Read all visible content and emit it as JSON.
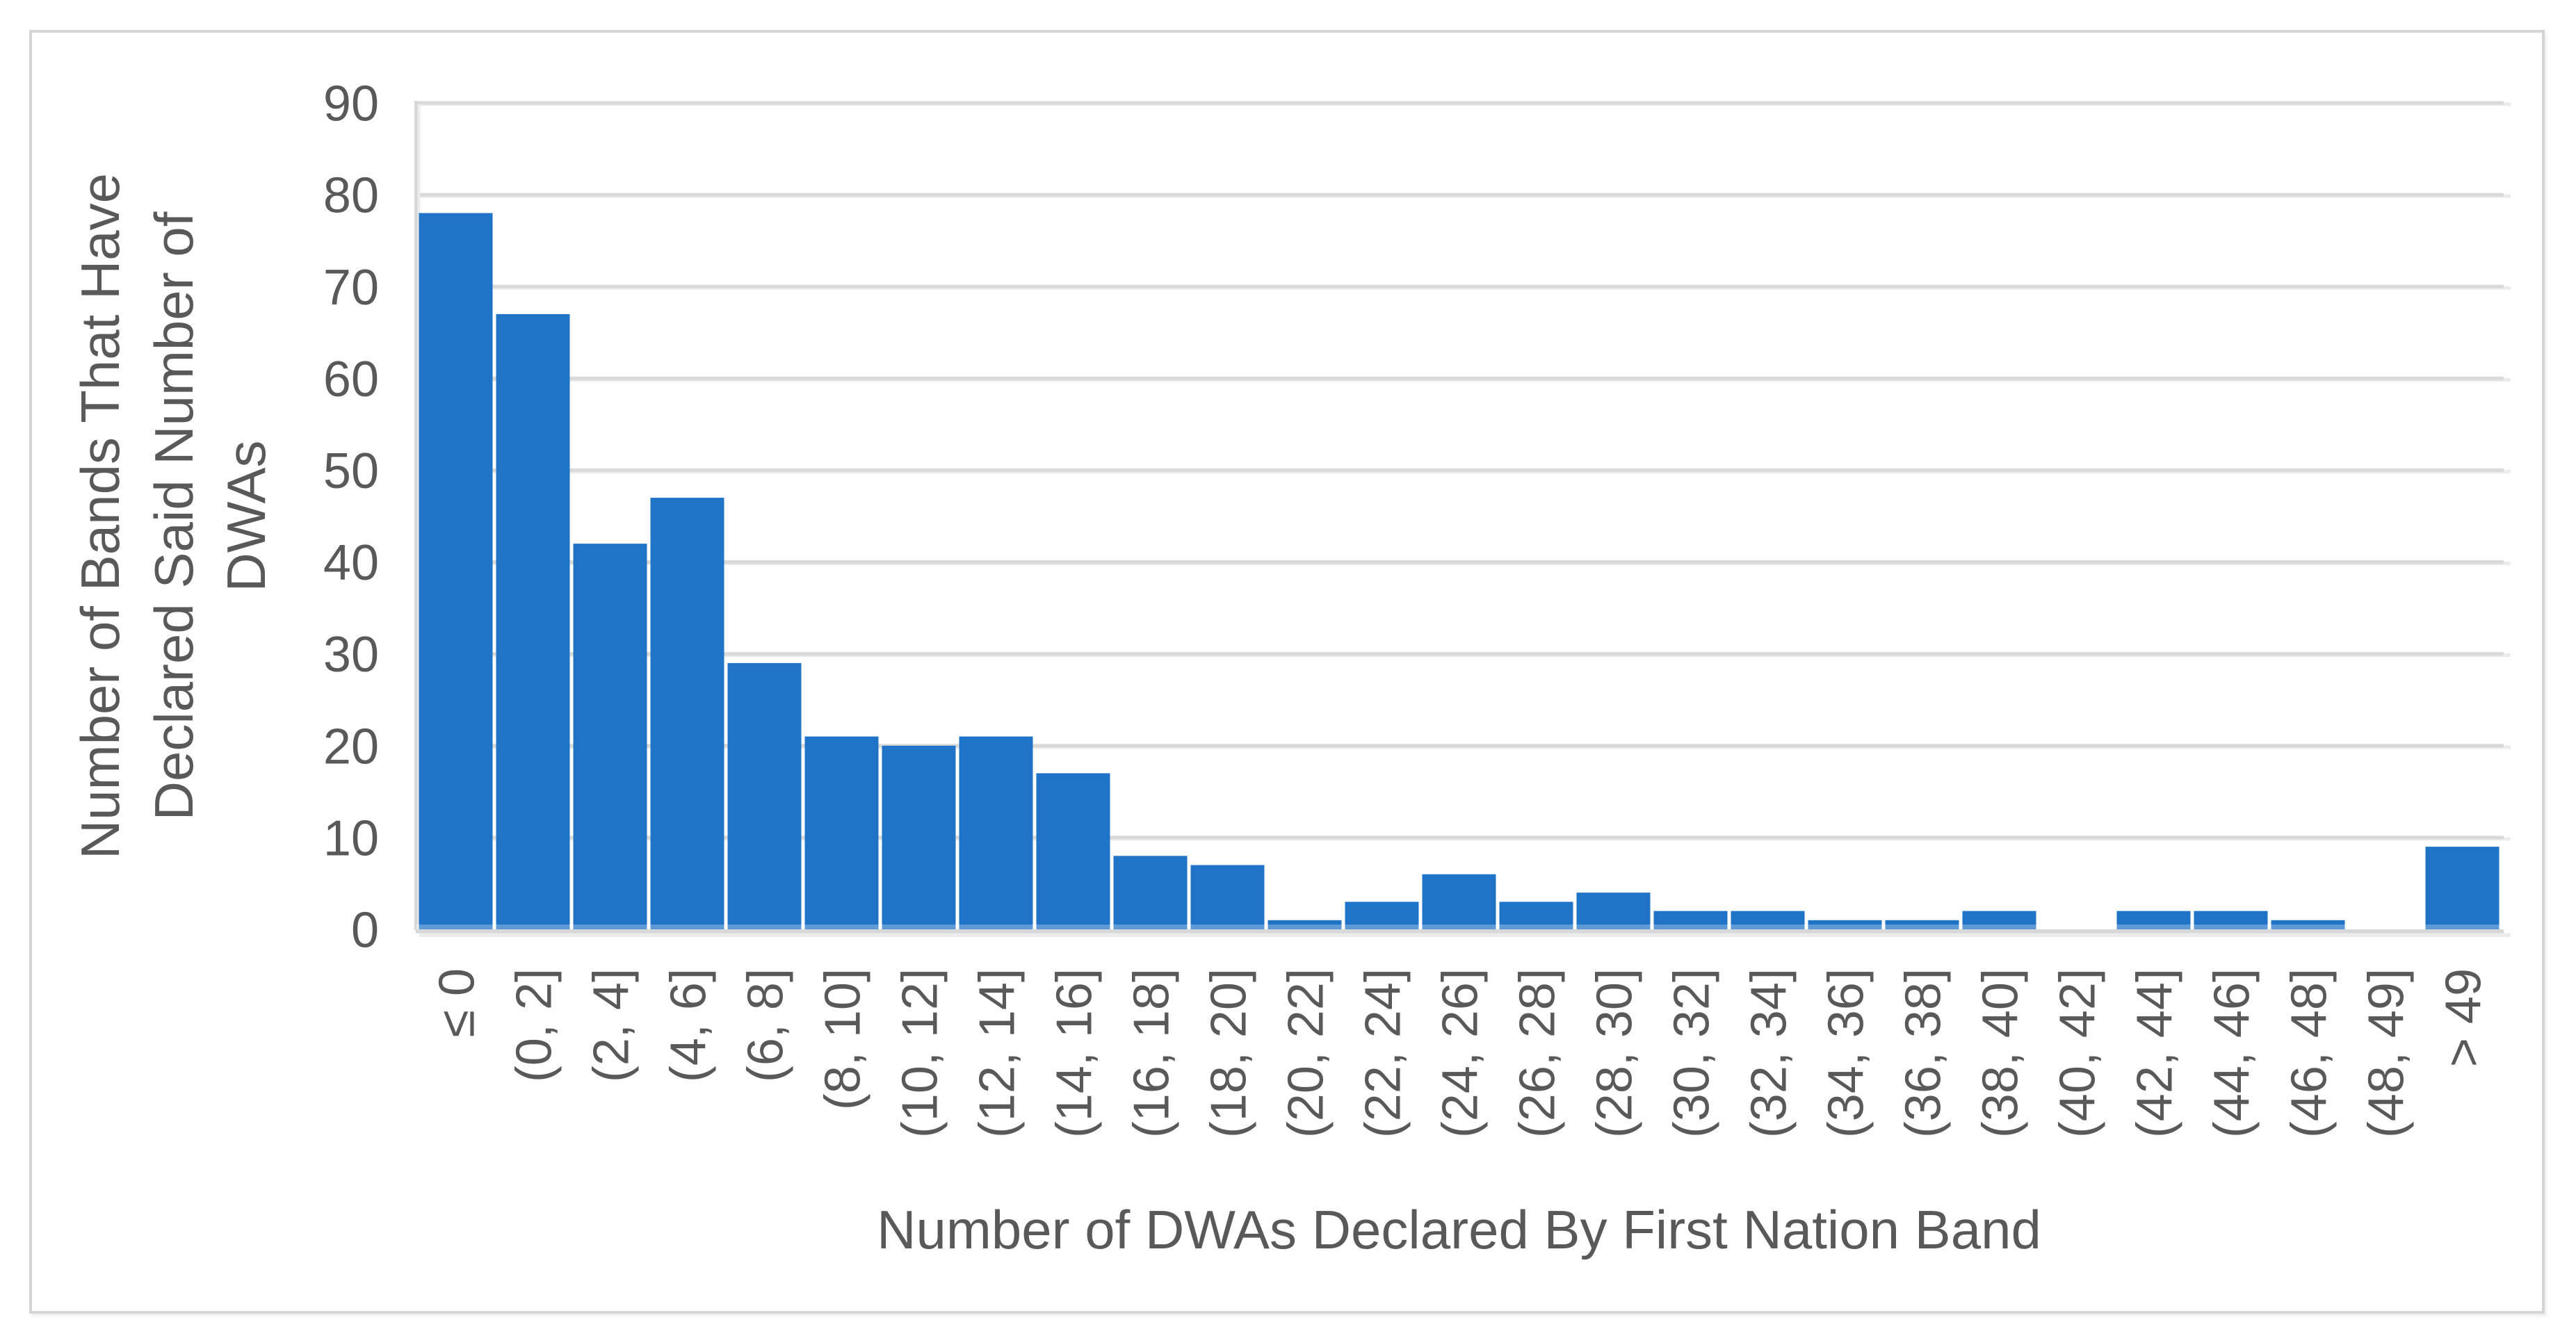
{
  "chart_data": {
    "type": "bar",
    "title": "",
    "xlabel": "Number of DWAs Declared By First Nation Band",
    "ylabel": "Number of Bands That Have Declared Said Number of DWAs",
    "ylabel_lines": [
      "Number of Bands That Have",
      "Declared Said Number of",
      "DWAs"
    ],
    "categories": [
      "≤ 0",
      "(0, 2]",
      "(2, 4]",
      "(4, 6]",
      "(6, 8]",
      "(8, 10]",
      "(10, 12]",
      "(12, 14]",
      "(14, 16]",
      "(16, 18]",
      "(18, 20]",
      "(20, 22]",
      "(22, 24]",
      "(24, 26]",
      "(26, 28]",
      "(28, 30]",
      "(30, 32]",
      "(32, 34]",
      "(34, 36]",
      "(36, 38]",
      "(38, 40]",
      "(40, 42]",
      "(42, 44]",
      "(44, 46]",
      "(46, 48]",
      "(48, 49]",
      "> 49"
    ],
    "values": [
      78,
      67,
      42,
      47,
      29,
      21,
      20,
      21,
      17,
      8,
      7,
      1,
      3,
      6,
      3,
      4,
      2,
      2,
      1,
      1,
      2,
      0,
      2,
      2,
      1,
      0,
      9
    ],
    "ylim": [
      0,
      90
    ],
    "ytick_step": 10,
    "ytick_labels": [
      "0",
      "10",
      "20",
      "30",
      "40",
      "50",
      "60",
      "70",
      "80",
      "90"
    ],
    "grid": true,
    "legend": "none",
    "colors": {
      "bar": "#2074C7",
      "gridline": "#D9D9D9",
      "gridline_shadow": "#EBEBEB",
      "axis_line": "#D7D7D7",
      "axis_shadow": "#ECECEC",
      "text": "#595959",
      "figure_border": "#D5D5D5",
      "background": "#FFFFFF"
    }
  }
}
